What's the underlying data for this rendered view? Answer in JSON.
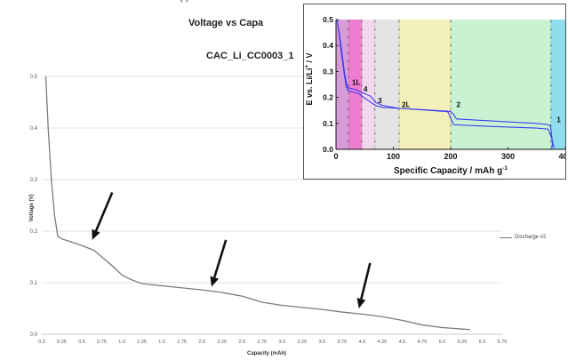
{
  "header": {
    "top_hint": "(          )"
  },
  "chart_data": [
    {
      "type": "line",
      "title": "Voltage vs Capa",
      "subtitle": "CAC_Li_CC0003_1",
      "xlabel": "Capacity (mAh)",
      "ylabel": "Voltage (V)",
      "xlim": [
        0,
        5.75
      ],
      "ylim": [
        0,
        0.5
      ],
      "x_ticks": [
        "0.0",
        "0.25",
        "0.5",
        "0.75",
        "1.0",
        "1.25",
        "1.5",
        "1.75",
        "2.0",
        "2.25",
        "2.5",
        "2.75",
        "3.0",
        "3.25",
        "3.5",
        "3.75",
        "4.0",
        "4.25",
        "4.5",
        "4.75",
        "5.0",
        "5.25",
        "5.5",
        "5.75"
      ],
      "y_ticks": [
        "0.0",
        "0.1",
        "0.2",
        "0.3",
        "0.4",
        "0.5"
      ],
      "grid": true,
      "legend": "right",
      "series": [
        {
          "name": "Discharge #2",
          "color": "#7a7a7a",
          "x": [
            0.05,
            0.08,
            0.12,
            0.16,
            0.2,
            0.25,
            0.35,
            0.5,
            0.65,
            0.75,
            0.9,
            1.0,
            1.1,
            1.25,
            1.5,
            2.0,
            2.25,
            2.5,
            2.75,
            3.0,
            3.25,
            3.5,
            3.75,
            4.0,
            4.25,
            4.5,
            4.75,
            5.0,
            5.25,
            5.35
          ],
          "y": [
            0.5,
            0.4,
            0.3,
            0.23,
            0.19,
            0.185,
            0.18,
            0.172,
            0.163,
            0.15,
            0.13,
            0.115,
            0.107,
            0.098,
            0.094,
            0.086,
            0.081,
            0.074,
            0.062,
            0.056,
            0.052,
            0.048,
            0.043,
            0.039,
            0.034,
            0.027,
            0.018,
            0.013,
            0.01,
            0.009
          ]
        }
      ],
      "annotations": [
        {
          "type": "arrow",
          "from": [
            0.88,
            0.275
          ],
          "to": [
            0.63,
            0.183
          ]
        },
        {
          "type": "arrow",
          "from": [
            2.3,
            0.183
          ],
          "to": [
            2.12,
            0.092
          ]
        },
        {
          "type": "arrow",
          "from": [
            4.1,
            0.138
          ],
          "to": [
            3.96,
            0.05
          ]
        }
      ]
    },
    {
      "type": "line",
      "xlabel": "Specific Capacity / mAh g-1",
      "ylabel": "E vs. Li/Li+ / V",
      "xlim": [
        0,
        400
      ],
      "ylim": [
        0,
        0.5
      ],
      "x_ticks": [
        "0",
        "100",
        "200",
        "300",
        "400"
      ],
      "y_ticks": [
        "0.0",
        "0.1",
        "0.2",
        "0.3",
        "0.4",
        "0.5"
      ],
      "regions": [
        {
          "from": 0,
          "to": 22,
          "color": "#d79bd8"
        },
        {
          "from": 22,
          "to": 45,
          "color": "#ee7dd0"
        },
        {
          "from": 45,
          "to": 68,
          "color": "#f0d7ee"
        },
        {
          "from": 68,
          "to": 110,
          "color": "#e4e4e4"
        },
        {
          "from": 110,
          "to": 200,
          "color": "#f4f0b9"
        },
        {
          "from": 200,
          "to": 375,
          "color": "#c8f2d2"
        },
        {
          "from": 375,
          "to": 400,
          "color": "#8fdcec"
        }
      ],
      "series": [
        {
          "color": "#3d3df0",
          "x": [
            2,
            5,
            10,
            15,
            18,
            22,
            30,
            40,
            45,
            55,
            65,
            70,
            80,
            110,
            150,
            195,
            200,
            205,
            250,
            300,
            350,
            370,
            376,
            380
          ],
          "y": [
            0.5,
            0.45,
            0.36,
            0.28,
            0.24,
            0.225,
            0.22,
            0.215,
            0.205,
            0.19,
            0.175,
            0.168,
            0.162,
            0.158,
            0.152,
            0.145,
            0.12,
            0.095,
            0.09,
            0.086,
            0.082,
            0.078,
            0.045,
            0.005
          ]
        },
        {
          "color": "#3d3df0",
          "x": [
            376,
            378,
            374,
            370,
            350,
            300,
            250,
            210,
            205,
            200,
            195,
            150,
            110,
            80,
            70,
            60,
            45,
            35,
            25,
            20,
            15,
            10,
            5
          ],
          "y": [
            0.005,
            0.02,
            0.09,
            0.095,
            0.1,
            0.106,
            0.112,
            0.117,
            0.135,
            0.145,
            0.147,
            0.153,
            0.158,
            0.17,
            0.18,
            0.205,
            0.22,
            0.23,
            0.235,
            0.238,
            0.29,
            0.38,
            0.46
          ]
        }
      ],
      "labels": [
        {
          "text": "1L",
          "x": 28,
          "y": 0.248
        },
        {
          "text": "4",
          "x": 48,
          "y": 0.222
        },
        {
          "text": "3",
          "x": 73,
          "y": 0.178
        },
        {
          "text": "2L",
          "x": 115,
          "y": 0.163
        },
        {
          "text": "2",
          "x": 210,
          "y": 0.163
        },
        {
          "text": "1",
          "x": 385,
          "y": 0.105
        }
      ]
    }
  ]
}
